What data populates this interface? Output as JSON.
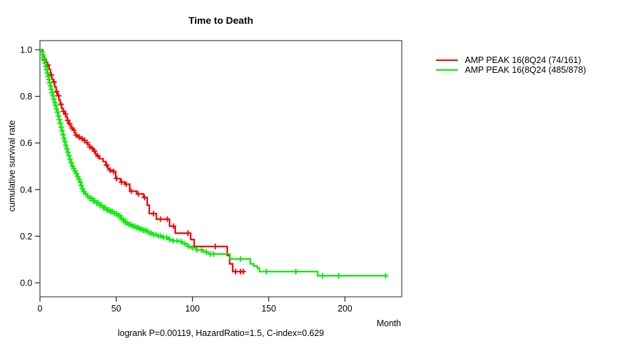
{
  "title": "Time to Death",
  "chart_data": {
    "type": "line",
    "subtype": "kaplan-meier-step",
    "title": "Time to Death",
    "xlabel": "Month",
    "ylabel": "cumulative survival rate",
    "annotation": "logrank P=0.00119, HazardRatio=1.5, C-index=0.629",
    "xlim": [
      0,
      237
    ],
    "ylim": [
      0,
      1.0
    ],
    "x_ticks": [
      0,
      50,
      100,
      150,
      200
    ],
    "y_ticks": [
      0.0,
      0.2,
      0.4,
      0.6,
      0.8,
      1.0
    ],
    "grid": false,
    "legend_position": "right-outside",
    "axis_color": "#444444",
    "series": [
      {
        "name": "AMP PEAK 16(8Q24 (74/161)",
        "color": "#ff0000",
        "end_month": 134.2,
        "steps": [
          [
            0,
            1.0
          ],
          [
            1.8,
            0.975
          ],
          [
            2.8,
            0.958
          ],
          [
            4.1,
            0.946
          ],
          [
            5.1,
            0.934
          ],
          [
            6.0,
            0.915
          ],
          [
            6.9,
            0.892
          ],
          [
            7.8,
            0.874
          ],
          [
            8.7,
            0.862
          ],
          [
            9.7,
            0.84
          ],
          [
            10.6,
            0.82
          ],
          [
            11.5,
            0.802
          ],
          [
            12.4,
            0.784
          ],
          [
            13.3,
            0.766
          ],
          [
            14.3,
            0.748
          ],
          [
            15.2,
            0.736
          ],
          [
            16.1,
            0.724
          ],
          [
            17.0,
            0.712
          ],
          [
            17.9,
            0.697
          ],
          [
            18.8,
            0.682
          ],
          [
            19.8,
            0.673
          ],
          [
            20.7,
            0.664
          ],
          [
            21.6,
            0.655
          ],
          [
            22.5,
            0.645
          ],
          [
            23.4,
            0.634
          ],
          [
            24.8,
            0.625
          ],
          [
            26.2,
            0.618
          ],
          [
            28.0,
            0.612
          ],
          [
            29.4,
            0.601
          ],
          [
            31.3,
            0.592
          ],
          [
            32.7,
            0.583
          ],
          [
            33.6,
            0.577
          ],
          [
            35.0,
            0.565
          ],
          [
            36.3,
            0.553
          ],
          [
            37.2,
            0.544
          ],
          [
            39.0,
            0.532
          ],
          [
            41.4,
            0.52
          ],
          [
            43.2,
            0.505
          ],
          [
            44.6,
            0.49
          ],
          [
            46.0,
            0.483
          ],
          [
            48.3,
            0.477
          ],
          [
            49.7,
            0.447
          ],
          [
            52.9,
            0.432
          ],
          [
            55.6,
            0.423
          ],
          [
            58.9,
            0.393
          ],
          [
            63.4,
            0.381
          ],
          [
            68.0,
            0.366
          ],
          [
            70.3,
            0.333
          ],
          [
            71.7,
            0.297
          ],
          [
            76.3,
            0.273
          ],
          [
            85.0,
            0.243
          ],
          [
            88.7,
            0.213
          ],
          [
            98.8,
            0.186
          ],
          [
            101.1,
            0.156
          ],
          [
            122.8,
            0.117
          ],
          [
            124.4,
            0.081
          ],
          [
            126.4,
            0.048
          ]
        ],
        "censor_months": [
          2.8,
          5.1,
          7.4,
          9.2,
          10.8,
          12.2,
          13.8,
          15.4,
          16.8,
          18.2,
          19.5,
          21.0,
          22.3,
          23.7,
          25.7,
          27.6,
          29.2,
          31.0,
          32.8,
          34.3,
          35.8,
          38.0,
          43.7,
          46.0,
          48.3,
          50.2,
          53.5,
          56.5,
          60.0,
          64.5,
          68.6,
          74.5,
          79.0,
          83.5,
          87.6,
          97.0,
          115.0,
          128.3,
          131.5,
          133.3
        ]
      },
      {
        "name": "AMP PEAK 16(8Q24 (485/878)",
        "color": "#00ee00",
        "end_month": 227,
        "steps": [
          [
            0,
            1.0
          ],
          [
            1.0,
            0.99
          ],
          [
            1.8,
            0.978
          ],
          [
            2.3,
            0.966
          ],
          [
            2.9,
            0.954
          ],
          [
            3.4,
            0.942
          ],
          [
            3.9,
            0.928
          ],
          [
            4.4,
            0.914
          ],
          [
            4.9,
            0.9
          ],
          [
            5.4,
            0.886
          ],
          [
            5.9,
            0.872
          ],
          [
            6.4,
            0.858
          ],
          [
            6.9,
            0.844
          ],
          [
            7.4,
            0.83
          ],
          [
            7.9,
            0.816
          ],
          [
            8.5,
            0.802
          ],
          [
            9.1,
            0.788
          ],
          [
            9.7,
            0.774
          ],
          [
            10.3,
            0.76
          ],
          [
            10.9,
            0.746
          ],
          [
            11.5,
            0.732
          ],
          [
            12.1,
            0.716
          ],
          [
            12.7,
            0.7
          ],
          [
            13.3,
            0.684
          ],
          [
            13.9,
            0.668
          ],
          [
            14.5,
            0.652
          ],
          [
            15.1,
            0.636
          ],
          [
            15.7,
            0.62
          ],
          [
            16.3,
            0.605
          ],
          [
            16.9,
            0.59
          ],
          [
            17.6,
            0.575
          ],
          [
            18.3,
            0.56
          ],
          [
            19.0,
            0.545
          ],
          [
            19.7,
            0.53
          ],
          [
            20.5,
            0.515
          ],
          [
            21.3,
            0.5
          ],
          [
            22.1,
            0.49
          ],
          [
            23.0,
            0.479
          ],
          [
            23.9,
            0.468
          ],
          [
            24.8,
            0.456
          ],
          [
            25.6,
            0.444
          ],
          [
            26.4,
            0.432
          ],
          [
            27.1,
            0.417
          ],
          [
            27.8,
            0.403
          ],
          [
            28.8,
            0.392
          ],
          [
            29.8,
            0.382
          ],
          [
            31.2,
            0.372
          ],
          [
            32.6,
            0.363
          ],
          [
            34.9,
            0.352
          ],
          [
            37.2,
            0.342
          ],
          [
            39.5,
            0.331
          ],
          [
            41.8,
            0.321
          ],
          [
            44.1,
            0.312
          ],
          [
            46.4,
            0.306
          ],
          [
            48.7,
            0.297
          ],
          [
            51.0,
            0.288
          ],
          [
            53.3,
            0.272
          ],
          [
            55.6,
            0.258
          ],
          [
            57.9,
            0.25
          ],
          [
            60.2,
            0.243
          ],
          [
            62.5,
            0.237
          ],
          [
            64.8,
            0.231
          ],
          [
            67.1,
            0.225
          ],
          [
            69.4,
            0.222
          ],
          [
            71.7,
            0.213
          ],
          [
            74.0,
            0.207
          ],
          [
            77.2,
            0.201
          ],
          [
            80.4,
            0.195
          ],
          [
            84.1,
            0.186
          ],
          [
            87.2,
            0.18
          ],
          [
            90.1,
            0.177
          ],
          [
            93.3,
            0.168
          ],
          [
            96.5,
            0.156
          ],
          [
            99.4,
            0.15
          ],
          [
            102.5,
            0.141
          ],
          [
            107.1,
            0.132
          ],
          [
            110.3,
            0.123
          ],
          [
            124.6,
            0.102
          ],
          [
            137.9,
            0.081
          ],
          [
            140.2,
            0.072
          ],
          [
            142.5,
            0.063
          ],
          [
            143.9,
            0.048
          ],
          [
            182.1,
            0.03
          ]
        ],
        "censor_months": [
          1.4,
          1.9,
          2.4,
          2.9,
          3.4,
          3.9,
          4.4,
          4.9,
          5.4,
          5.9,
          6.4,
          6.9,
          7.4,
          7.9,
          8.5,
          9.1,
          9.7,
          10.3,
          10.9,
          11.5,
          12.1,
          12.7,
          13.3,
          13.9,
          14.5,
          15.1,
          15.7,
          16.3,
          16.9,
          17.6,
          18.3,
          19.0,
          19.7,
          20.5,
          21.3,
          22.1,
          23.0,
          23.9,
          24.8,
          25.6,
          26.4,
          27.1,
          27.8,
          28.8,
          29.8,
          31.2,
          32.6,
          33.8,
          34.9,
          36.0,
          37.2,
          38.4,
          39.5,
          40.7,
          41.8,
          43.0,
          44.1,
          45.3,
          46.4,
          47.6,
          48.7,
          50.0,
          51.2,
          52.4,
          53.6,
          54.8,
          56.0,
          57.2,
          58.4,
          59.6,
          60.8,
          62.0,
          63.2,
          64.4,
          65.6,
          66.8,
          68.0,
          69.2,
          70.4,
          71.7,
          73.0,
          74.4,
          76.0,
          77.6,
          79.2,
          81.0,
          83.0,
          85.0,
          87.5,
          90.0,
          92.5,
          95.0,
          97.5,
          100.0,
          103.0,
          106.0,
          109.0,
          111.7,
          114.0,
          131.5,
          148.5,
          167.8,
          185.3,
          195.9,
          226.7
        ]
      }
    ]
  }
}
